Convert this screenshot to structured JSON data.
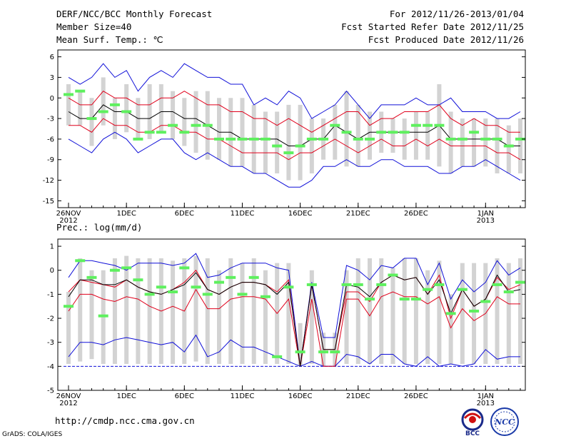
{
  "header": {
    "title": "DERF/NCC/BCC Monthly Forecast",
    "member_size": "Member Size=40",
    "variable": "Mean Surf. Temp.: ℃",
    "forecast_period": "For 2012/11/26-2013/01/04",
    "refer_date": "Fcst Started Refer Date 2012/11/25",
    "produced_date": "Fcst Produced Date 2012/11/26"
  },
  "footer": {
    "url": "http://cmdp.ncc.cma.gov.cn",
    "credit": "GrADS: COLA/IGES",
    "logo_bcc": "BCC",
    "logo_ncc": "NCC"
  },
  "colors": {
    "ensemble_bar": "#d3d3d3",
    "mean_line": "#000000",
    "sd_line": "#e0001b",
    "extreme_line": "#1010d8",
    "marker": "#5ef05e",
    "frame": "#000000"
  },
  "chart_data": [
    {
      "type": "line",
      "title": "Mean Surf. Temp.: ℃",
      "ylim": [
        -16,
        7
      ],
      "yticks": [
        6,
        3,
        0,
        -3,
        -6,
        -9,
        -12,
        -15
      ],
      "xticks": [
        {
          "day": 0,
          "label": "26NOV",
          "sub": "2012"
        },
        {
          "day": 5,
          "label": "1DEC",
          "sub": ""
        },
        {
          "day": 10,
          "label": "6DEC",
          "sub": ""
        },
        {
          "day": 15,
          "label": "11DEC",
          "sub": ""
        },
        {
          "day": 20,
          "label": "16DEC",
          "sub": ""
        },
        {
          "day": 25,
          "label": "21DEC",
          "sub": ""
        },
        {
          "day": 30,
          "label": "26DEC",
          "sub": ""
        },
        {
          "day": 36,
          "label": "1JAN",
          "sub": "2013"
        }
      ],
      "days": 40,
      "series": [
        {
          "name": "max",
          "values": [
            3,
            2,
            3,
            5,
            3,
            4,
            1,
            3,
            4,
            3,
            5,
            4,
            3,
            3,
            2,
            2,
            -1,
            0,
            -1,
            1,
            0,
            -3,
            -2,
            -1,
            1,
            -1,
            -3,
            -1,
            -1,
            -1,
            0,
            -1,
            -1,
            0,
            -2,
            -2,
            -2,
            -3,
            -3,
            -2
          ]
        },
        {
          "name": "mean_plus_sd",
          "values": [
            0,
            -1,
            -1,
            1,
            0,
            0,
            -1,
            -1,
            0,
            0,
            1,
            0,
            -1,
            -1,
            -2,
            -2,
            -3,
            -3,
            -4,
            -3,
            -4,
            -5,
            -4,
            -3,
            -2,
            -2,
            -4,
            -3,
            -3,
            -2,
            -2,
            -2,
            -1,
            -3,
            -4,
            -3,
            -4,
            -4,
            -5,
            -5
          ]
        },
        {
          "name": "mean",
          "values": [
            -2,
            -3,
            -3,
            -1,
            -2,
            -2,
            -3,
            -3,
            -2,
            -2,
            -3,
            -3,
            -4,
            -5,
            -5,
            -6,
            -6,
            -6,
            -6,
            -7,
            -7,
            -6,
            -6,
            -4,
            -5,
            -6,
            -5,
            -5,
            -5,
            -5,
            -5,
            -5,
            -4,
            -6,
            -6,
            -6,
            -6,
            -6,
            -7,
            -7
          ]
        },
        {
          "name": "mean_minus_sd",
          "values": [
            -4,
            -4,
            -5,
            -3,
            -4,
            -4,
            -5,
            -5,
            -4,
            -4,
            -5,
            -5,
            -6,
            -6,
            -7,
            -8,
            -8,
            -8,
            -8,
            -9,
            -8,
            -8,
            -7,
            -6,
            -7,
            -8,
            -7,
            -6,
            -7,
            -7,
            -6,
            -7,
            -6,
            -7,
            -7,
            -7,
            -7,
            -8,
            -8,
            -9
          ]
        },
        {
          "name": "min",
          "values": [
            -6,
            -7,
            -8,
            -6,
            -5,
            -6,
            -8,
            -7,
            -6,
            -6,
            -8,
            -9,
            -8,
            -9,
            -10,
            -10,
            -11,
            -11,
            -12,
            -13,
            -13,
            -12,
            -10,
            -10,
            -9,
            -10,
            -10,
            -9,
            -9,
            -10,
            -10,
            -10,
            -11,
            -11,
            -10,
            -10,
            -9,
            -10,
            -11,
            -12
          ]
        },
        {
          "name": "bar_top",
          "values": [
            2,
            1,
            0,
            3,
            0,
            2,
            0,
            2,
            2,
            1,
            0,
            1,
            1,
            0,
            0,
            0,
            -1,
            -2,
            -2,
            -1,
            -1,
            -3,
            -3,
            -1,
            1,
            -1,
            -2,
            -2,
            -3,
            -3,
            -2,
            -2,
            2,
            -2,
            -3,
            -3,
            -3,
            -3,
            -4,
            -3
          ]
        },
        {
          "name": "bar_bottom",
          "values": [
            -4,
            -4,
            -7,
            -4,
            -6,
            -5,
            -6,
            -6,
            -5,
            -6,
            -7,
            -8,
            -9,
            -9,
            -10,
            -10,
            -11,
            -11,
            -11,
            -12,
            -12,
            -11,
            -9,
            -9,
            -10,
            -10,
            -9,
            -8,
            -8,
            -9,
            -9,
            -9,
            -10,
            -11,
            -10,
            -10,
            -10,
            -11,
            -11,
            -11
          ]
        },
        {
          "name": "marker",
          "values": [
            0.5,
            1,
            -3,
            -2,
            -1,
            -2,
            -6,
            -5,
            -5,
            -4,
            -5,
            -4,
            -4,
            -6,
            -6,
            -6,
            -6,
            -6,
            -7,
            -8,
            -7,
            -6,
            -6,
            -4,
            -5,
            -6,
            -6,
            -5,
            -5,
            -5,
            -4,
            -4,
            -4,
            -6,
            -6,
            -5,
            -6,
            -6,
            -7,
            -6
          ]
        }
      ]
    },
    {
      "type": "line",
      "title": "Prec.: log(mm/d)",
      "ylim": [
        -5,
        1.3
      ],
      "yticks": [
        1,
        0,
        -1,
        -2,
        -3,
        -4,
        -5
      ],
      "xticks": [
        {
          "day": 0,
          "label": "26NOV",
          "sub": "2012"
        },
        {
          "day": 5,
          "label": "1DEC",
          "sub": ""
        },
        {
          "day": 10,
          "label": "6DEC",
          "sub": ""
        },
        {
          "day": 15,
          "label": "11DEC",
          "sub": ""
        },
        {
          "day": 20,
          "label": "16DEC",
          "sub": ""
        },
        {
          "day": 25,
          "label": "21DEC",
          "sub": ""
        },
        {
          "day": 30,
          "label": "26DEC",
          "sub": ""
        },
        {
          "day": 36,
          "label": "1JAN",
          "sub": "2013"
        }
      ],
      "days": 40,
      "series": [
        {
          "name": "max",
          "values": [
            -0.3,
            0.4,
            0.4,
            0.3,
            0.2,
            0,
            0.3,
            0.3,
            0.3,
            0.2,
            0.3,
            0.7,
            -0.3,
            -0.2,
            0.1,
            0.3,
            0.3,
            0.3,
            0.1,
            0,
            -4,
            -0.5,
            -2.8,
            -2.8,
            0.2,
            0,
            -0.4,
            0.2,
            0.1,
            0.5,
            0.5,
            -0.6,
            0.3,
            -1.2,
            -0.4,
            -0.9,
            -0.5,
            0.4,
            -0.2,
            0.1
          ]
        },
        {
          "name": "mean_plus_sd",
          "values": [
            -0.9,
            -0.4,
            -0.5,
            -0.6,
            -0.7,
            -0.4,
            -0.7,
            -0.9,
            -1,
            -0.8,
            -0.5,
            0,
            -0.8,
            -1,
            -0.7,
            -0.5,
            -0.5,
            -0.6,
            -0.9,
            -0.4,
            -4,
            -0.6,
            -3.3,
            -3.3,
            -0.9,
            -0.9,
            -1.3,
            -0.5,
            -0.2,
            -0.4,
            -0.3,
            -1,
            -0.2,
            -2,
            -0.8,
            -1.5,
            -1.2,
            -0.3,
            -0.8,
            -0.6
          ]
        },
        {
          "name": "mean",
          "values": [
            -1.1,
            -0.4,
            -0.4,
            -0.6,
            -0.6,
            -0.4,
            -0.7,
            -0.9,
            -1,
            -0.8,
            -0.6,
            -0.1,
            -0.8,
            -1,
            -0.7,
            -0.5,
            -0.5,
            -0.6,
            -1,
            -0.5,
            -4,
            -0.6,
            -3.3,
            -3.3,
            -0.6,
            -0.7,
            -1.1,
            -0.5,
            -0.2,
            -0.4,
            -0.3,
            -1,
            -0.4,
            -1.8,
            -0.8,
            -1.5,
            -1.2,
            -0.2,
            -0.9,
            -0.8
          ]
        },
        {
          "name": "mean_minus_sd",
          "values": [
            -1.7,
            -1,
            -1,
            -1.2,
            -1.3,
            -1.1,
            -1.2,
            -1.5,
            -1.7,
            -1.5,
            -1.7,
            -0.8,
            -1.6,
            -1.6,
            -1.2,
            -1.1,
            -1.1,
            -1.2,
            -1.8,
            -1.2,
            -4,
            -1.2,
            -4,
            -4,
            -1.2,
            -1.2,
            -1.9,
            -1.1,
            -0.9,
            -1.1,
            -1.1,
            -1.4,
            -1.1,
            -2.4,
            -1.6,
            -2.1,
            -1.8,
            -1.1,
            -1.4,
            -1.4
          ]
        },
        {
          "name": "min",
          "values": [
            -3.6,
            -3,
            -3,
            -3.1,
            -2.9,
            -2.8,
            -2.9,
            -3,
            -3.1,
            -3,
            -3.4,
            -2.7,
            -3.6,
            -3.4,
            -2.9,
            -3.2,
            -3.2,
            -3.4,
            -3.6,
            -3.8,
            -4,
            -3.8,
            -4,
            -4,
            -3.5,
            -3.6,
            -3.9,
            -3.5,
            -3.5,
            -3.9,
            -4,
            -3.6,
            -4,
            -3.9,
            -4,
            -3.9,
            -3.3,
            -3.7,
            -3.6,
            -3.6
          ]
        },
        {
          "name": "bar_top",
          "values": [
            -0.9,
            0.5,
            0,
            0,
            0.5,
            0.6,
            0.5,
            0.5,
            0.5,
            0.4,
            0.5,
            0.6,
            0.5,
            0,
            0.5,
            0.3,
            0.5,
            0,
            0.3,
            0.3,
            -2.2,
            0,
            -2.6,
            -2.6,
            0,
            0.5,
            0.5,
            0.5,
            0.1,
            0.5,
            0.5,
            0,
            0.4,
            -1,
            0.3,
            0.3,
            0.3,
            0.5,
            0.3,
            0.5
          ]
        },
        {
          "name": "bar_bottom",
          "values": [
            -3.9,
            -3.8,
            -3.7,
            -3.9,
            -3.9,
            -3.9,
            -3.9,
            -3.9,
            -3.9,
            -3.9,
            -3.9,
            -3.8,
            -3.9,
            -3.9,
            -3.9,
            -3.9,
            -3.9,
            -3.9,
            -3.9,
            -3.9,
            -4,
            -3.9,
            -4,
            -4,
            -3.9,
            -3.9,
            -3.9,
            -3.9,
            -3.9,
            -3.9,
            -3.9,
            -3.9,
            -3.9,
            -3.9,
            -3.9,
            -3.9,
            -3.9,
            -3.9,
            -3.9,
            -3.9
          ]
        },
        {
          "name": "marker",
          "values": [
            -1.5,
            0.4,
            -0.3,
            -1.9,
            0,
            0.1,
            -0.4,
            -1,
            -0.7,
            -0.9,
            0.1,
            -0.7,
            -1,
            -0.5,
            -0.3,
            -1,
            -0.3,
            -1.1,
            -3.6,
            -0.7,
            -3.4,
            -0.6,
            -3.4,
            -3.4,
            -0.6,
            -0.6,
            -1.2,
            -0.6,
            -0.2,
            -1.2,
            -1.2,
            -0.8,
            -0.6,
            -1.8,
            -0.8,
            -1.7,
            -1.3,
            -0.6,
            -0.9,
            -0.5
          ]
        }
      ],
      "floor_value": -4
    }
  ]
}
